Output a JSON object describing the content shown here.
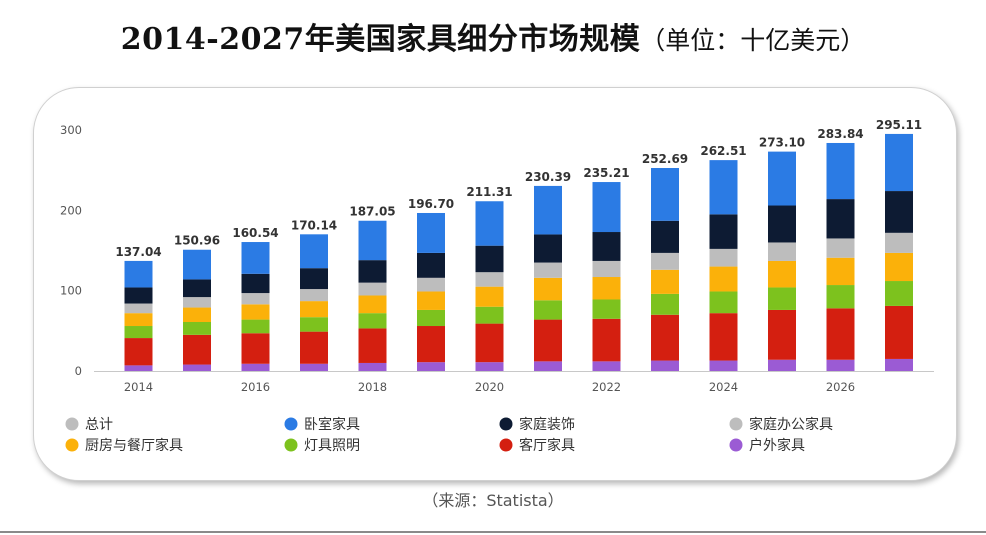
{
  "header": {
    "title": "2014-2027年美国家具细分市场规模",
    "unit": "（单位：十亿美元）"
  },
  "source": "（来源：Statista）",
  "chart_data": {
    "type": "bar",
    "stacked": true,
    "categories": [
      "2014",
      "2015",
      "2016",
      "2017",
      "2018",
      "2019",
      "2020",
      "2021",
      "2022",
      "2023",
      "2024",
      "2025",
      "2026",
      "2027"
    ],
    "x_tick_labels": [
      "2014",
      "",
      "2016",
      "",
      "2018",
      "",
      "2020",
      "",
      "2022",
      "",
      "2024",
      "",
      "2026",
      ""
    ],
    "totals": [
      137.04,
      150.96,
      160.54,
      170.14,
      187.05,
      196.7,
      211.31,
      230.39,
      235.21,
      252.69,
      262.51,
      273.1,
      283.84,
      295.11
    ],
    "total_labels": [
      "137.04",
      "150.96",
      "160.54",
      "170.14",
      "187.05",
      "196.70",
      "211.31",
      "230.39",
      "235.21",
      "252.69",
      "262.51",
      "273.10",
      "283.84",
      "295.11"
    ],
    "ylim": [
      0,
      300
    ],
    "y_ticks": [
      0,
      100,
      200,
      300
    ],
    "grid": false,
    "legend_position": "bottom",
    "legend": [
      {
        "name": "总计",
        "color": "#bdbdbd"
      },
      {
        "name": "卧室家具",
        "color": "#2b7be4"
      },
      {
        "name": "家庭装饰",
        "color": "#0d1b33"
      },
      {
        "name": "家庭办公家具",
        "color": "#bdbdbd"
      },
      {
        "name": "厨房与餐厅家具",
        "color": "#fbb10a"
      },
      {
        "name": "灯具照明",
        "color": "#7dc21e"
      },
      {
        "name": "客厅家具",
        "color": "#d41f10"
      },
      {
        "name": "户外家具",
        "color": "#9b5bd4"
      }
    ],
    "series": [
      {
        "name": "户外家具",
        "color": "#9b5bd4",
        "values": [
          7,
          8,
          9,
          9,
          10,
          11,
          11,
          12,
          12,
          13,
          13,
          14,
          14,
          15
        ]
      },
      {
        "name": "客厅家具",
        "color": "#d41f10",
        "values": [
          34,
          37,
          38,
          40,
          43,
          45,
          48,
          52,
          53,
          57,
          59,
          62,
          64,
          66
        ]
      },
      {
        "name": "灯具照明",
        "color": "#7dc21e",
        "values": [
          15,
          16,
          17,
          18,
          19,
          20,
          21,
          24,
          24,
          26,
          27,
          28,
          29,
          31
        ]
      },
      {
        "name": "厨房与餐厅家具",
        "color": "#fbb10a",
        "values": [
          16,
          18,
          19,
          20,
          22,
          23,
          25,
          28,
          28,
          30,
          31,
          33,
          34,
          35
        ]
      },
      {
        "name": "家庭办公家具",
        "color": "#bdbdbd",
        "values": [
          12,
          13,
          14,
          15,
          16,
          17,
          18,
          19,
          20,
          21,
          22,
          23,
          24,
          25
        ]
      },
      {
        "name": "家庭装饰",
        "color": "#0d1b33",
        "values": [
          20,
          22,
          24,
          26,
          28,
          31,
          33,
          35,
          36,
          40,
          43,
          46,
          49,
          52
        ]
      },
      {
        "name": "卧室家具",
        "color": "#2b7be4",
        "values": [
          33.04,
          36.96,
          39.54,
          42.14,
          49.05,
          49.7,
          55.31,
          60.39,
          62.21,
          65.69,
          67.51,
          67.1,
          69.84,
          71.11
        ]
      }
    ]
  }
}
